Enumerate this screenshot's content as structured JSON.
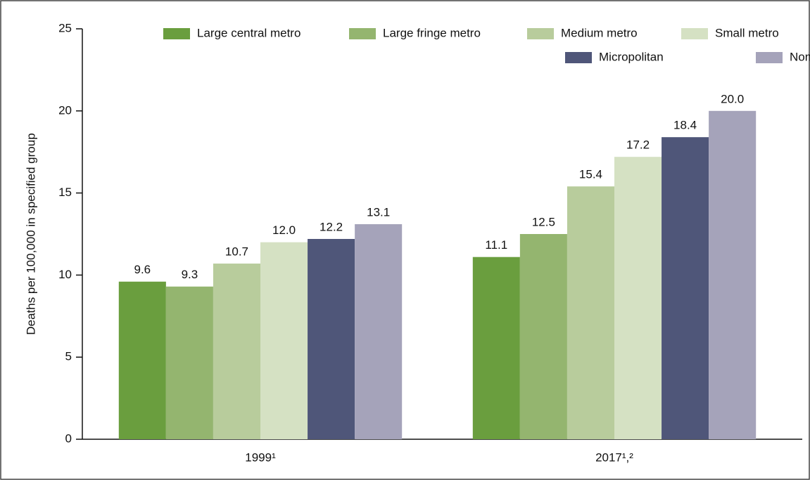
{
  "chart_data": {
    "type": "bar",
    "y_label": "Deaths per 100,000 in specified group",
    "categories": [
      "1999¹",
      "2017¹,²"
    ],
    "series": [
      {
        "name": "Large central metro",
        "color": "#6a9e3e",
        "values": [
          9.6,
          11.1
        ],
        "value_labels": [
          "9.6",
          "11.1"
        ]
      },
      {
        "name": "Large fringe metro",
        "color": "#94b56f",
        "values": [
          9.3,
          12.5
        ],
        "value_labels": [
          "9.3",
          "12.5"
        ]
      },
      {
        "name": "Medium metro",
        "color": "#b8cc9c",
        "values": [
          10.7,
          15.4
        ],
        "value_labels": [
          "10.7",
          "15.4"
        ]
      },
      {
        "name": "Small metro",
        "color": "#d5e1c3",
        "values": [
          12.0,
          17.2
        ],
        "value_labels": [
          "12.0",
          "17.2"
        ]
      },
      {
        "name": "Micropolitan",
        "color": "#4f5679",
        "values": [
          12.2,
          18.4
        ],
        "value_labels": [
          "12.2",
          "18.4"
        ]
      },
      {
        "name": "Noncore",
        "color": "#a5a3ba",
        "values": [
          13.1,
          20.0
        ],
        "value_labels": [
          "13.1",
          "20.0"
        ]
      }
    ],
    "ylim": [
      0,
      25
    ],
    "yticks": [
      0,
      5,
      10,
      15,
      20,
      25
    ],
    "legend": "top-right"
  }
}
